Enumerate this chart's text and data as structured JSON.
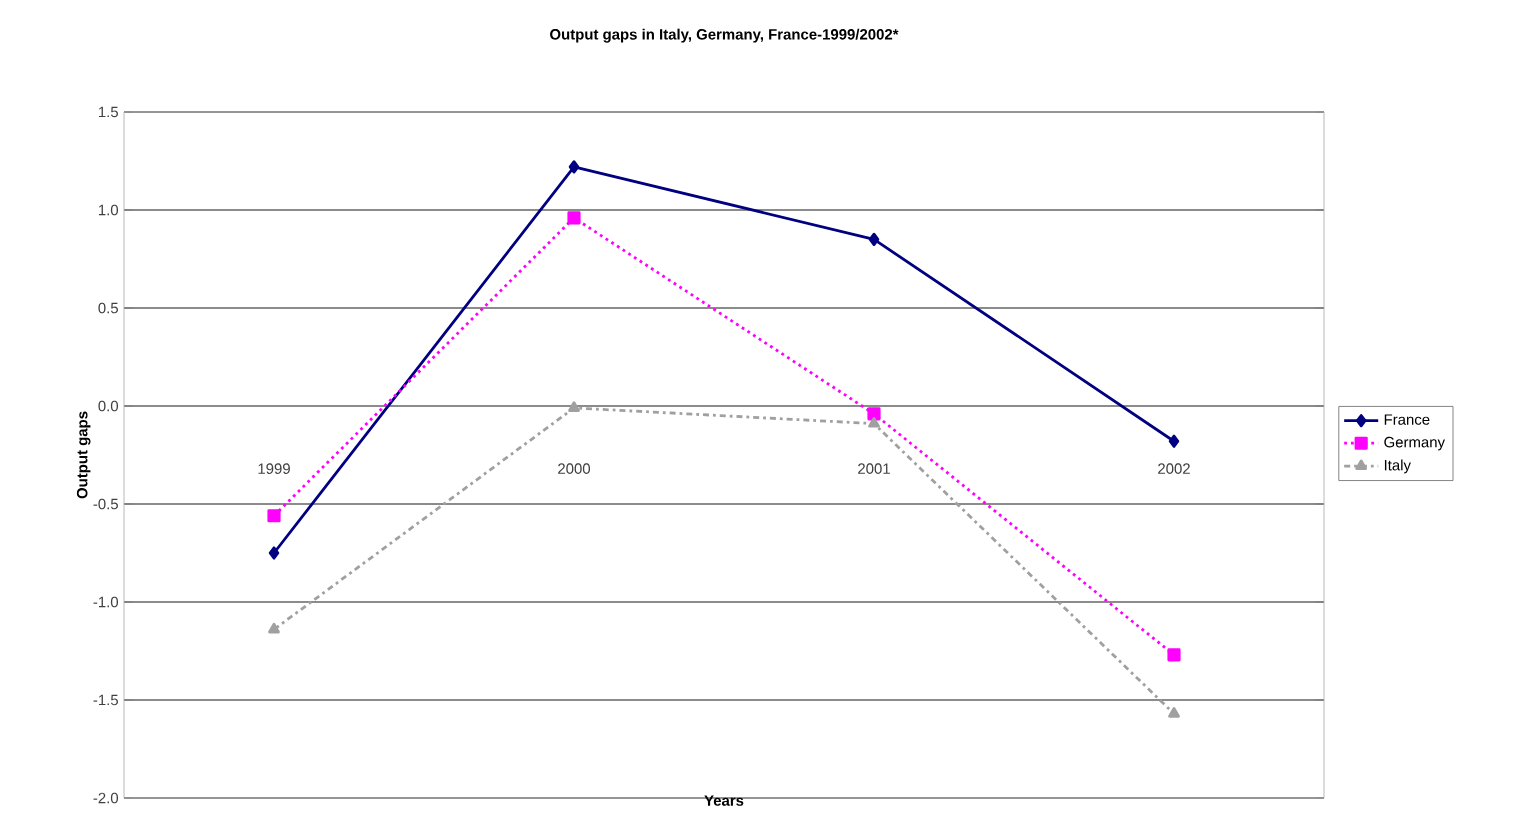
{
  "chart_data": {
    "type": "line",
    "title": "Output gaps in Italy, Germany, France-1999/2002*",
    "xlabel": "Years",
    "ylabel": "Output gaps",
    "categories": [
      "1999",
      "2000",
      "2001",
      "2002"
    ],
    "series": [
      {
        "name": "France",
        "color": "#000080",
        "marker": "diamond",
        "line_style": "solid",
        "values": [
          -0.75,
          1.22,
          0.85,
          -0.18
        ]
      },
      {
        "name": "Germany",
        "color": "#ff00ff",
        "marker": "square",
        "line_style": "dotted",
        "values": [
          -0.56,
          0.96,
          -0.04,
          -1.27
        ]
      },
      {
        "name": "Italy",
        "color": "#a0a0a0",
        "marker": "triangle",
        "line_style": "dashdot",
        "values": [
          -1.14,
          -0.01,
          -0.09,
          -1.57
        ]
      }
    ],
    "ylim": [
      -2.0,
      1.5
    ],
    "yticks": [
      {
        "value": -2.0,
        "label": "-2.0"
      },
      {
        "value": -1.5,
        "label": "-1.5"
      },
      {
        "value": -1.0,
        "label": "-1.0"
      },
      {
        "value": -0.5,
        "label": "-0.5"
      },
      {
        "value": 0.0,
        "label": "0.0"
      },
      {
        "value": 0.5,
        "label": "0.5"
      },
      {
        "value": 1.0,
        "label": "1.0"
      },
      {
        "value": 1.5,
        "label": "1.5"
      }
    ],
    "grid": "y",
    "legend": "right"
  }
}
